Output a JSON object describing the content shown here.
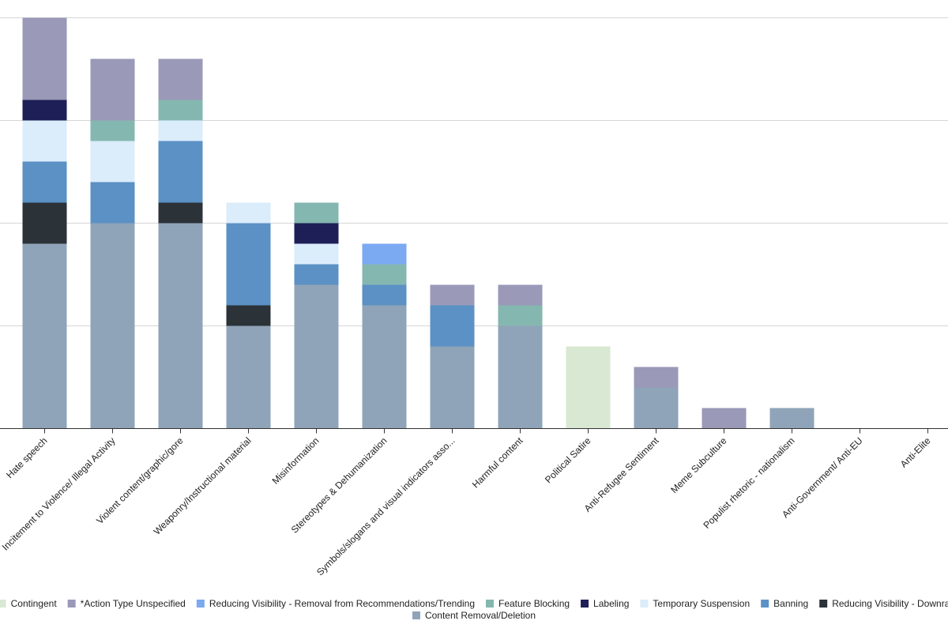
{
  "chart_data": {
    "type": "bar",
    "stacked": true,
    "title": "",
    "xlabel": "",
    "ylabel": "",
    "ylim": [
      0,
      20
    ],
    "grid": true,
    "legend_position": "bottom",
    "categories": [
      "Hate speech",
      "Incitement to Violence/ Illegal Activity",
      "Violent content/graphic/gore",
      "Weaponry/Instructional material",
      "Misinformation",
      "Stereotypes & Dehumanization",
      "Symbols/slogans and visual indicators asso...",
      "Harmful content",
      "Political Satire",
      "Anti-Refugee Sentiment",
      "Meme Subculture",
      "Populist rhetoric - nationalism",
      "Anti-Government/ Anti-EU",
      "Anti-Elite"
    ],
    "series": [
      {
        "name": "Content Removal/Deletion",
        "color": "#8fa4b8",
        "values": [
          9,
          10,
          10,
          5,
          7,
          6,
          4,
          5,
          0,
          2,
          0,
          1,
          0,
          0
        ]
      },
      {
        "name": "Reducing Visibility - Downra",
        "color": "#2b3238",
        "values": [
          2,
          0,
          1,
          1,
          0,
          0,
          0,
          0,
          0,
          0,
          0,
          0,
          0,
          0
        ]
      },
      {
        "name": "Banning",
        "color": "#5b91c4",
        "values": [
          2,
          2,
          3,
          4,
          1,
          1,
          2,
          0,
          0,
          0,
          0,
          0,
          0,
          0
        ]
      },
      {
        "name": "Temporary Suspension",
        "color": "#dbecfb",
        "values": [
          2,
          2,
          1,
          1,
          1,
          0,
          0,
          0,
          0,
          0,
          0,
          0,
          0,
          0
        ]
      },
      {
        "name": "Labeling",
        "color": "#1e1f57",
        "values": [
          1,
          0,
          0,
          0,
          1,
          0,
          0,
          0,
          0,
          0,
          0,
          0,
          0,
          0
        ]
      },
      {
        "name": "Feature Blocking",
        "color": "#84b7b0",
        "values": [
          0,
          1,
          1,
          0,
          1,
          1,
          0,
          1,
          0,
          0,
          0,
          0,
          0,
          0
        ]
      },
      {
        "name": "Reducing Visibility - Removal from Recommendations/Trending",
        "color": "#7ba9f2",
        "values": [
          0,
          0,
          0,
          0,
          0,
          1,
          0,
          0,
          0,
          0,
          0,
          0,
          0,
          0
        ]
      },
      {
        "name": "*Action Type Unspecified",
        "color": "#9a99b8",
        "values": [
          4,
          3,
          2,
          0,
          0,
          0,
          1,
          1,
          0,
          1,
          1,
          0,
          0,
          0
        ]
      },
      {
        "name": "Contingent",
        "color": "#d9e8d2",
        "values": [
          0,
          0,
          0,
          0,
          0,
          0,
          0,
          0,
          4,
          0,
          0,
          0,
          0,
          0
        ]
      }
    ],
    "legend_rows": [
      [
        "Contingent",
        "*Action Type Unspecified",
        "Reducing Visibility - Removal from Recommendations/Trending",
        "Feature Blocking",
        "Labeling",
        "Temporary Suspension",
        "Banning",
        "Reducing Visibility - Downra"
      ],
      [
        "Content Removal/Deletion"
      ]
    ]
  }
}
